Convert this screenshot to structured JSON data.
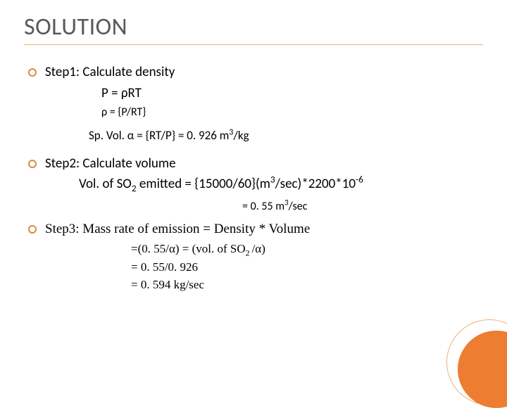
{
  "title": "SOLUTION",
  "step1": {
    "heading": "Step1: Calculate density",
    "eq1": "P = ρRT",
    "eq2": "ρ = {P/RT}",
    "spvol_prefix": "Sp. Vol.   α = {RT/P} = 0. 926 m",
    "spvol_sup": "3",
    "spvol_suffix": "/kg"
  },
  "step2": {
    "heading": "Step2: Calculate volume",
    "vol_prefix": "Vol. of SO",
    "vol_sub": "2",
    "vol_mid": " emitted = {15000/60}(m",
    "vol_sup1": "3",
    "vol_mid2": "/sec)*2200*10",
    "vol_sup2": "-6",
    "result_prefix": "= 0. 55 m",
    "result_sup": "3",
    "result_suffix": "/sec"
  },
  "step3": {
    "heading": "Step3: Mass rate of emission = Density * Volume",
    "line1_prefix": "=(0. 55/α) = (vol. of SO",
    "line1_sub": "2 ",
    "line1_suffix": "/α)",
    "line2": "= 0. 55/0. 926",
    "line3": "= 0. 594 kg/sec"
  },
  "colors": {
    "accent": "#ed7d31",
    "accent_light": "#f0b078",
    "title_color": "#595959",
    "text": "#000000",
    "background": "#ffffff"
  }
}
